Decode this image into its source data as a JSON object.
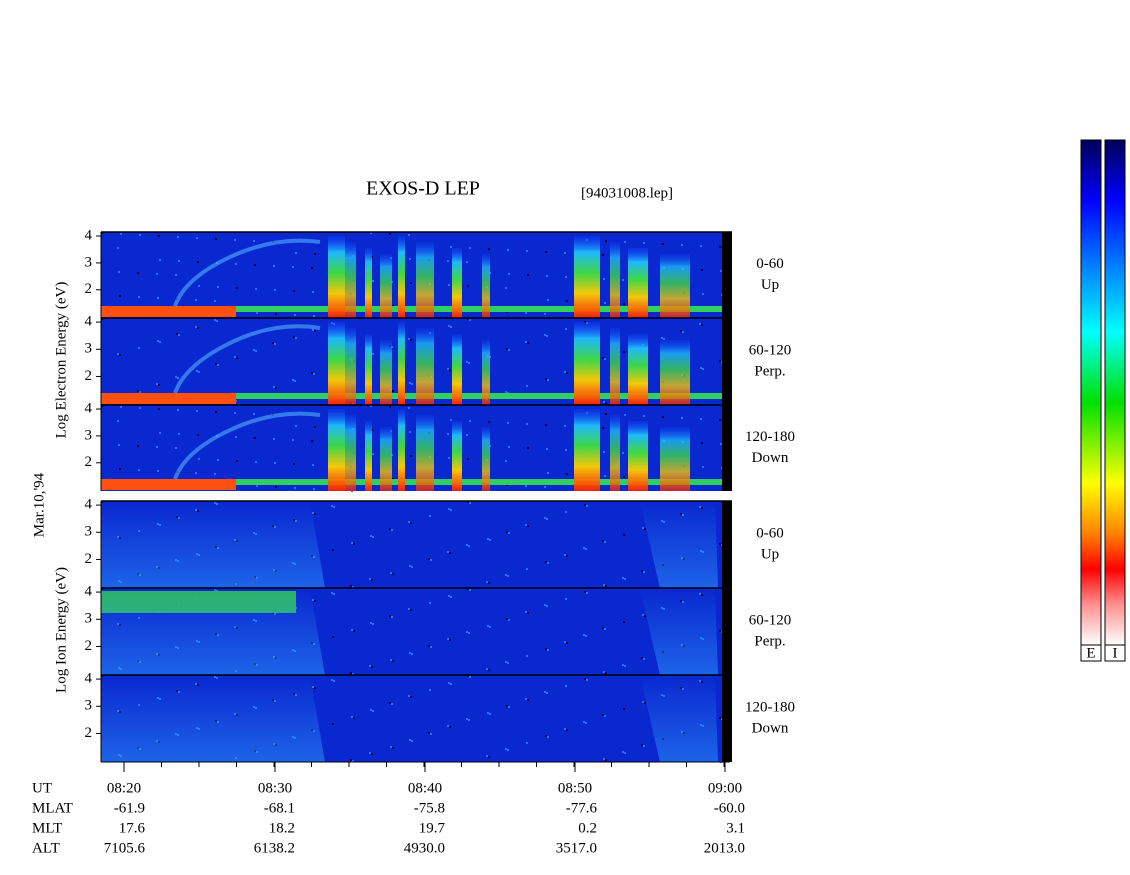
{
  "title": "EXOS-D LEP",
  "file": "[94031008.lep]",
  "date": "Mar.10,'94",
  "energy_axis": {
    "ylim": [
      0.95,
      4.15
    ],
    "yticks": [
      2,
      3,
      4
    ]
  },
  "electron": {
    "axis_label": "Log Electron Energy (eV)",
    "panels": [
      {
        "angle": "0-60",
        "direction": "Up"
      },
      {
        "angle": "60-120",
        "direction": "Perp."
      },
      {
        "angle": "120-180",
        "direction": "Down"
      }
    ]
  },
  "ion": {
    "axis_label": "Log Ion Energy (eV)",
    "panels": [
      {
        "angle": "0-60",
        "direction": "Up"
      },
      {
        "angle": "60-120",
        "direction": "Perp."
      },
      {
        "angle": "120-180",
        "direction": "Down"
      }
    ]
  },
  "time_axis": {
    "ticks": [
      "08:20",
      "08:30",
      "08:40",
      "08:50",
      "09:00"
    ]
  },
  "ephemeris": {
    "rows": [
      {
        "name": "UT",
        "values": []
      },
      {
        "name": "MLAT",
        "values": [
          "-61.9",
          "-68.1",
          "-75.8",
          "-77.6",
          "-60.0"
        ]
      },
      {
        "name": "MLT",
        "values": [
          "17.6",
          "18.2",
          "19.7",
          "0.2",
          "3.1"
        ]
      },
      {
        "name": "ALT",
        "values": [
          "7105.6",
          "6138.2",
          "4930.0",
          "3517.0",
          "2013.0"
        ]
      }
    ]
  },
  "colorbar": {
    "labels": [
      "E",
      "I"
    ]
  }
}
